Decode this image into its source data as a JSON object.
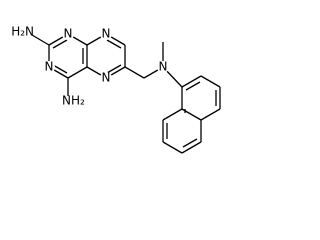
{
  "atoms": [
    {
      "label": "H₂N"
    },
    {
      "label": "N"
    },
    {
      "label": "N"
    },
    {
      "label": "NH₂"
    },
    {
      "label": "N"
    },
    {
      "label": "N"
    },
    {
      "label": "N"
    }
  ]
}
